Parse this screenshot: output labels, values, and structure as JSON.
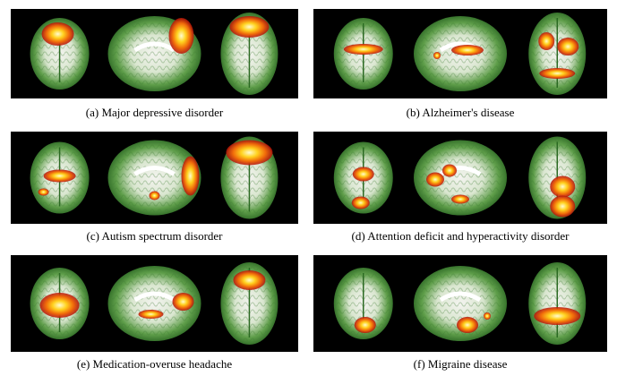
{
  "panels": [
    {
      "caption": "(a) Major depressive disorder"
    },
    {
      "caption": "(b) Alzheimer's disease"
    },
    {
      "caption": "(c) Autism spectrum disorder"
    },
    {
      "caption": "(d) Attention deficit and hyperactivity disorder"
    },
    {
      "caption": "(e) Medication-overuse headache"
    },
    {
      "caption": "(f) Migraine disease"
    }
  ]
}
